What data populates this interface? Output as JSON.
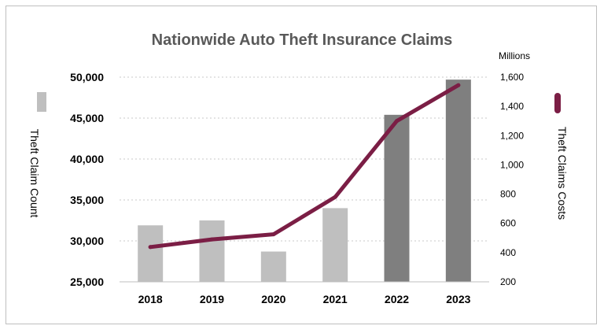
{
  "chart_data": {
    "type": "bar",
    "title": "Nationwide Auto Theft Insurance Claims",
    "categories": [
      "2018",
      "2019",
      "2020",
      "2021",
      "2022",
      "2023"
    ],
    "series": [
      {
        "name": "Theft Claim Count",
        "type": "bar",
        "axis": "left",
        "values": [
          31900,
          32500,
          28700,
          34000,
          45400,
          49700
        ],
        "colors": [
          "#bfbfbf",
          "#bfbfbf",
          "#bfbfbf",
          "#bfbfbf",
          "#7f7f7f",
          "#7f7f7f"
        ]
      },
      {
        "name": "Theft Claims Costs",
        "type": "line",
        "axis": "right",
        "values": [
          438,
          490,
          525,
          780,
          1300,
          1545
        ],
        "color": "#7b1e45"
      }
    ],
    "y_left": {
      "label": "Theft Claim Count",
      "range": [
        25000,
        50000
      ],
      "ticks": [
        "25,000",
        "30,000",
        "35,000",
        "40,000",
        "45,000",
        "50,000"
      ]
    },
    "y_right": {
      "label": "Theft Claims Costs",
      "units": "Millions",
      "range": [
        200,
        1600
      ],
      "ticks": [
        "200",
        "400",
        "600",
        "800",
        "1,000",
        "1,200",
        "1,400",
        "1,600"
      ]
    },
    "grid": "horizontal dotted",
    "legend": "left and right axis markers"
  }
}
